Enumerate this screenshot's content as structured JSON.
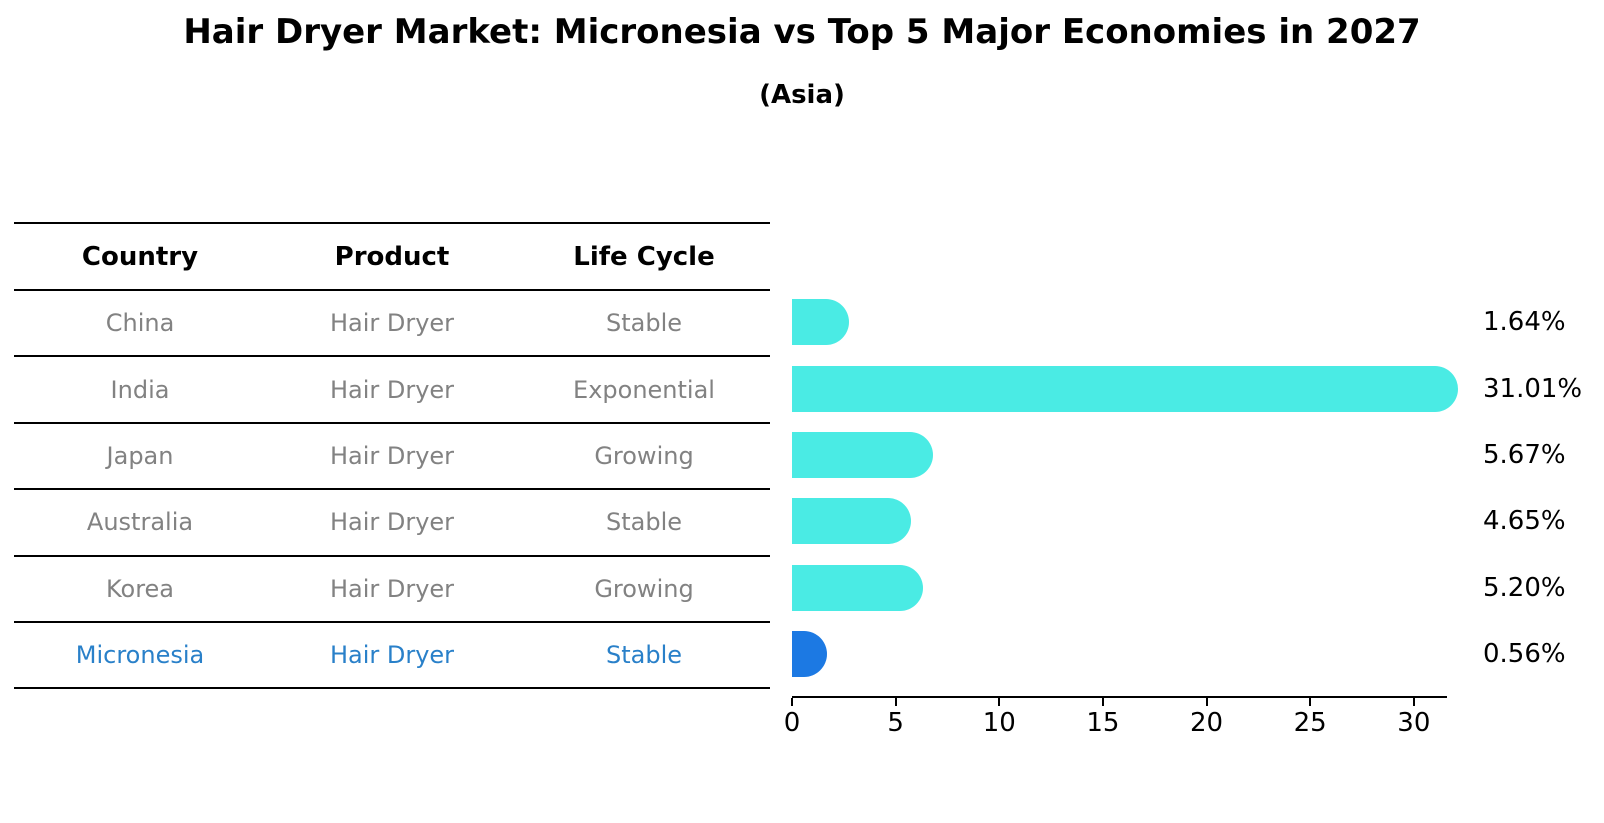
{
  "title": "Hair Dryer Market: Micronesia vs Top 5 Major Economies in 2027",
  "subtitle": "(Asia)",
  "colors": {
    "bar_default": "#4AEBE4",
    "bar_highlight": "#1C79E3",
    "highlight_text": "#2980C9",
    "table_text": "#828282",
    "axis_and_lines": "#000000"
  },
  "table": {
    "headers": [
      "Country",
      "Product",
      "Life Cycle"
    ],
    "rows": [
      {
        "country": "China",
        "product": "Hair Dryer",
        "life_cycle": "Stable",
        "highlight": false
      },
      {
        "country": "India",
        "product": "Hair Dryer",
        "life_cycle": "Exponential",
        "highlight": false
      },
      {
        "country": "Japan",
        "product": "Hair Dryer",
        "life_cycle": "Growing",
        "highlight": false
      },
      {
        "country": "Australia",
        "product": "Hair Dryer",
        "life_cycle": "Stable",
        "highlight": false
      },
      {
        "country": "Korea",
        "product": "Hair Dryer",
        "life_cycle": "Growing",
        "highlight": false
      },
      {
        "country": "Micronesia",
        "product": "Hair Dryer",
        "life_cycle": "Stable",
        "highlight": true
      }
    ]
  },
  "chart_data": {
    "type": "bar",
    "orientation": "horizontal",
    "title": "Hair Dryer Market: Micronesia vs Top 5 Major Economies in 2027 (Asia)",
    "categories": [
      "China",
      "India",
      "Japan",
      "Australia",
      "Korea",
      "Micronesia"
    ],
    "values": [
      1.64,
      31.01,
      5.67,
      4.65,
      5.2,
      0.56
    ],
    "value_labels": [
      "1.64%",
      "31.01%",
      "5.67%",
      "4.65%",
      "5.20%",
      "0.56%"
    ],
    "xlabel": "",
    "ylabel": "",
    "xlim": [
      0,
      31.6
    ],
    "xticks": [
      0,
      5,
      10,
      15,
      20,
      25,
      30
    ],
    "grid": false,
    "legend": "none",
    "highlight_index": 5
  }
}
